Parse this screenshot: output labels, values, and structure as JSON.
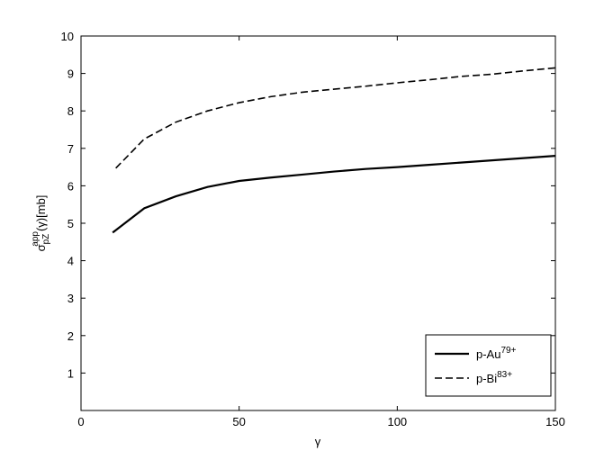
{
  "chart_data": {
    "type": "line",
    "x_label": "γ",
    "y_label": {
      "base": "σ",
      "sub": "pZ",
      "sup": "app",
      "tail": "(γ)[mb]"
    },
    "xlim": [
      0,
      150
    ],
    "xticks": [
      0,
      50,
      100,
      150
    ],
    "ylim": [
      0,
      10
    ],
    "yticks": [
      1,
      2,
      3,
      4,
      5,
      6,
      7,
      8,
      9,
      10
    ],
    "legend_position": "lower right",
    "series": [
      {
        "name": "p-Au",
        "name_sup": "79+",
        "color": "#000000",
        "dash": "solid",
        "x": [
          10,
          20,
          30,
          40,
          50,
          60,
          70,
          80,
          90,
          100,
          110,
          120,
          130,
          140,
          150
        ],
        "values": [
          4.75,
          5.4,
          5.72,
          5.97,
          6.13,
          6.22,
          6.3,
          6.38,
          6.45,
          6.5,
          6.56,
          6.62,
          6.68,
          6.74,
          6.8
        ]
      },
      {
        "name": "p-Bi",
        "name_sup": "83+",
        "color": "#000000",
        "dash": "dashed",
        "x": [
          11,
          20,
          30,
          40,
          50,
          60,
          70,
          80,
          90,
          100,
          110,
          120,
          130,
          140,
          150
        ],
        "values": [
          6.47,
          7.25,
          7.7,
          8.0,
          8.22,
          8.38,
          8.5,
          8.58,
          8.66,
          8.75,
          8.83,
          8.92,
          8.98,
          9.07,
          9.15
        ]
      }
    ]
  }
}
